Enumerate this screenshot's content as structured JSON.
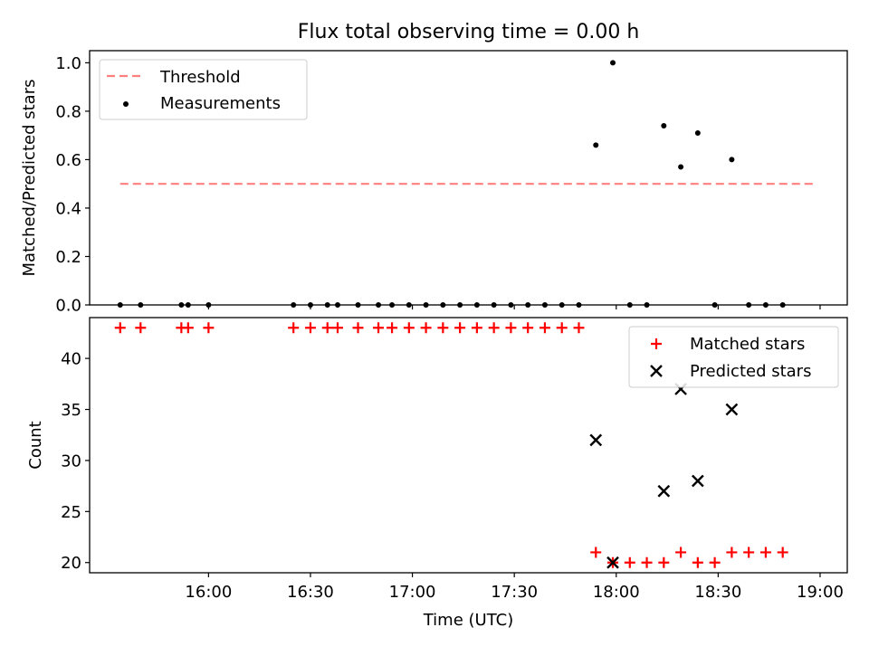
{
  "chart_data": [
    {
      "type": "scatter",
      "title": "Flux total observing time = 0.00 h",
      "xlabel": "",
      "ylabel": "Matched/Predicted stars",
      "xlim": [
        "15:25",
        "19:08"
      ],
      "ylim": [
        0,
        1.05
      ],
      "yticks": [
        "0.0",
        "0.2",
        "0.4",
        "0.6",
        "0.8",
        "1.0"
      ],
      "grid": false,
      "legend_position": "top-left",
      "threshold": {
        "name": "Threshold",
        "value": 0.5,
        "x_start": "15:34",
        "x_end": "18:58",
        "color": "#ff7f7f",
        "style": "dashed"
      },
      "series": [
        {
          "name": "Measurements",
          "marker": "dot",
          "color": "#000000",
          "points": [
            [
              "15:34",
              0.0
            ],
            [
              "15:40",
              0.0
            ],
            [
              "15:52",
              0.0
            ],
            [
              "15:54",
              0.0
            ],
            [
              "16:00",
              0.0
            ],
            [
              "16:25",
              0.0
            ],
            [
              "16:30",
              0.0
            ],
            [
              "16:35",
              0.0
            ],
            [
              "16:38",
              0.0
            ],
            [
              "16:44",
              0.0
            ],
            [
              "16:50",
              0.0
            ],
            [
              "16:54",
              0.0
            ],
            [
              "16:59",
              0.0
            ],
            [
              "17:04",
              0.0
            ],
            [
              "17:09",
              0.0
            ],
            [
              "17:14",
              0.0
            ],
            [
              "17:19",
              0.0
            ],
            [
              "17:24",
              0.0
            ],
            [
              "17:29",
              0.0
            ],
            [
              "17:34",
              0.0
            ],
            [
              "17:39",
              0.0
            ],
            [
              "17:44",
              0.0
            ],
            [
              "17:49",
              0.0
            ],
            [
              "17:54",
              0.66
            ],
            [
              "17:59",
              1.0
            ],
            [
              "18:04",
              0.0
            ],
            [
              "18:09",
              0.0
            ],
            [
              "18:14",
              0.74
            ],
            [
              "18:19",
              0.57
            ],
            [
              "18:24",
              0.71
            ],
            [
              "18:29",
              0.0
            ],
            [
              "18:34",
              0.6
            ],
            [
              "18:39",
              0.0
            ],
            [
              "18:44",
              0.0
            ],
            [
              "18:49",
              0.0
            ]
          ]
        }
      ]
    },
    {
      "type": "scatter",
      "title": "",
      "xlabel": "Time (UTC)",
      "ylabel": "Count",
      "xlim": [
        "15:25",
        "19:08"
      ],
      "ylim": [
        19,
        44
      ],
      "xticks": [
        "16:00",
        "16:30",
        "17:00",
        "17:30",
        "18:00",
        "18:30",
        "19:00"
      ],
      "yticks": [
        "20",
        "25",
        "30",
        "35",
        "40"
      ],
      "grid": false,
      "legend_position": "top-right",
      "series": [
        {
          "name": "Matched stars",
          "marker": "plus",
          "color": "#ff0000",
          "points": [
            [
              "15:34",
              43
            ],
            [
              "15:40",
              43
            ],
            [
              "15:52",
              43
            ],
            [
              "15:54",
              43
            ],
            [
              "16:00",
              43
            ],
            [
              "16:25",
              43
            ],
            [
              "16:30",
              43
            ],
            [
              "16:35",
              43
            ],
            [
              "16:38",
              43
            ],
            [
              "16:44",
              43
            ],
            [
              "16:50",
              43
            ],
            [
              "16:54",
              43
            ],
            [
              "16:59",
              43
            ],
            [
              "17:04",
              43
            ],
            [
              "17:09",
              43
            ],
            [
              "17:14",
              43
            ],
            [
              "17:19",
              43
            ],
            [
              "17:24",
              43
            ],
            [
              "17:29",
              43
            ],
            [
              "17:34",
              43
            ],
            [
              "17:39",
              43
            ],
            [
              "17:44",
              43
            ],
            [
              "17:49",
              43
            ],
            [
              "17:54",
              21
            ],
            [
              "17:59",
              20
            ],
            [
              "18:04",
              20
            ],
            [
              "18:09",
              20
            ],
            [
              "18:14",
              20
            ],
            [
              "18:19",
              21
            ],
            [
              "18:24",
              20
            ],
            [
              "18:29",
              20
            ],
            [
              "18:34",
              21
            ],
            [
              "18:39",
              21
            ],
            [
              "18:44",
              21
            ],
            [
              "18:49",
              21
            ]
          ]
        },
        {
          "name": "Predicted stars",
          "marker": "x",
          "color": "#000000",
          "points": [
            [
              "17:54",
              32
            ],
            [
              "17:59",
              20
            ],
            [
              "18:14",
              27
            ],
            [
              "18:19",
              37
            ],
            [
              "18:24",
              28
            ],
            [
              "18:34",
              35
            ]
          ]
        }
      ]
    }
  ]
}
